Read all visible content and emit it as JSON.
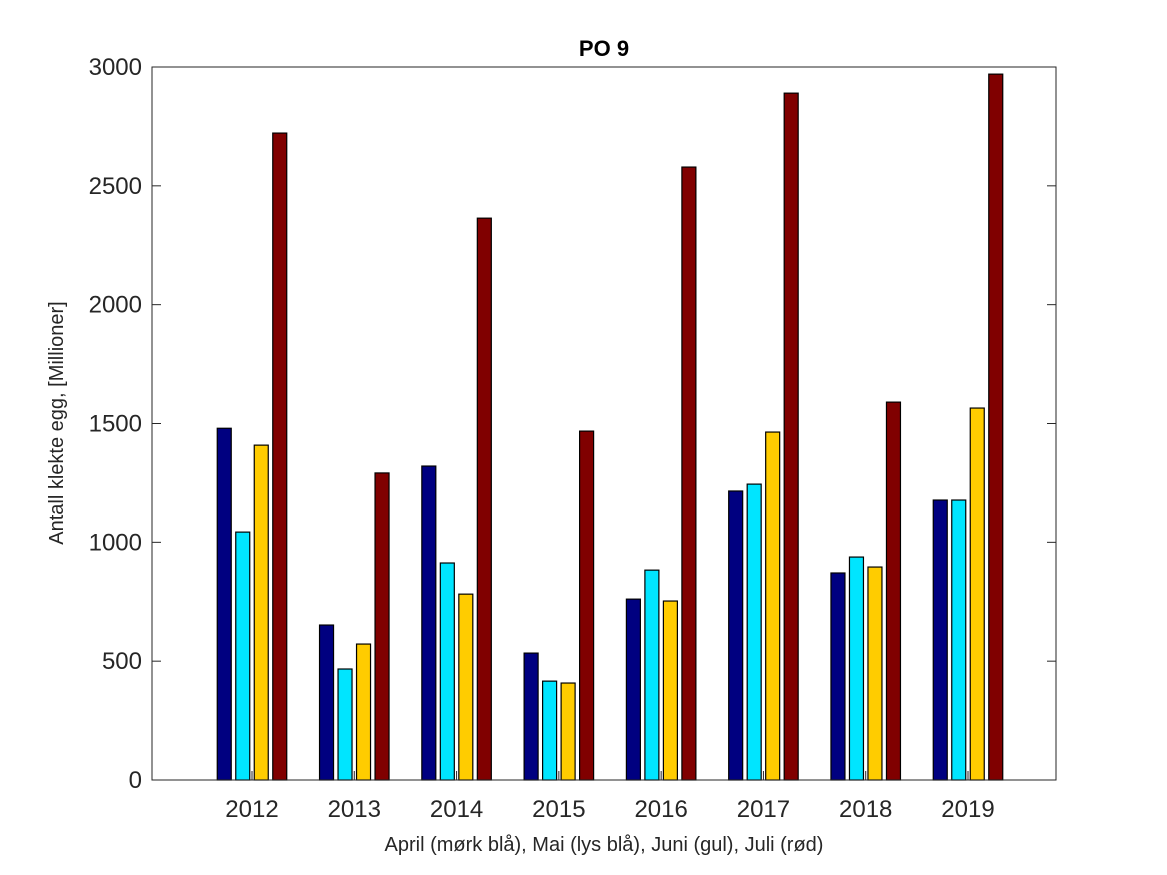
{
  "chart_data": {
    "type": "bar",
    "title": "PO 9",
    "xlabel": "April (mørk blå), Mai (lys blå), Juni (gul), Juli (rød)",
    "ylabel": "Antall klekte egg, [Millioner]",
    "ylim": [
      0,
      3000
    ],
    "yticks": [
      0,
      500,
      1000,
      1500,
      2000,
      2500,
      3000
    ],
    "categories": [
      "2012",
      "2013",
      "2014",
      "2015",
      "2016",
      "2017",
      "2018",
      "2019"
    ],
    "series": [
      {
        "name": "April",
        "color": "#000080",
        "values": [
          1480,
          652,
          1321,
          534,
          761,
          1216,
          871,
          1178
        ]
      },
      {
        "name": "Mai",
        "color": "#00e5ff",
        "values": [
          1043,
          467,
          913,
          416,
          883,
          1245,
          938,
          1178
        ]
      },
      {
        "name": "Juni",
        "color": "#ffcc00",
        "values": [
          1409,
          572,
          782,
          408,
          753,
          1464,
          896,
          1565
        ]
      },
      {
        "name": "Juli",
        "color": "#800000",
        "values": [
          2722,
          1292,
          2364,
          1468,
          2579,
          2890,
          1590,
          2970
        ]
      }
    ],
    "grid": false,
    "legend": "none"
  }
}
